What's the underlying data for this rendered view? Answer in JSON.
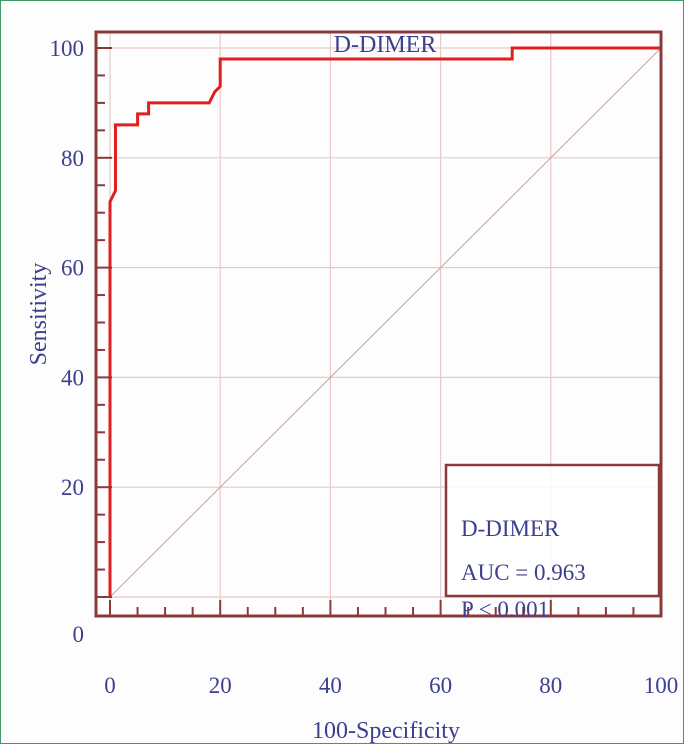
{
  "chart_data": {
    "type": "line",
    "title": "D-DIMER",
    "xlabel": "100-Specificity",
    "ylabel": "Sensitivity",
    "xlim": [
      0,
      100
    ],
    "ylim": [
      0,
      100
    ],
    "x_ticks": [
      "0",
      "20",
      "40",
      "60",
      "80",
      "100"
    ],
    "y_ticks": [
      "0",
      "20",
      "40",
      "60",
      "80",
      "100"
    ],
    "grid": true,
    "series": [
      {
        "name": "D-DIMER",
        "color": "#e02020",
        "x": [
          0,
          0,
          0,
          1,
          1,
          2,
          2,
          5,
          5,
          7,
          7,
          18,
          19,
          20,
          20,
          73,
          73,
          100
        ],
        "y": [
          0,
          70,
          72,
          74,
          86,
          86,
          86,
          86,
          88,
          88,
          90,
          90,
          92,
          93,
          98,
          98,
          100,
          100
        ]
      },
      {
        "name": "reference",
        "color": "#c9a0a0",
        "x": [
          0,
          100
        ],
        "y": [
          0,
          100
        ]
      }
    ],
    "legend": {
      "placement": "bottom-right",
      "lines": [
        "D-DIMER",
        "AUC = 0.963",
        "P < 0.001"
      ]
    },
    "colors": {
      "frame": "#8b3a3a",
      "grid": "#e9c9c9",
      "text": "#3d3f8f",
      "figure_border": "#3f9a6a"
    }
  }
}
